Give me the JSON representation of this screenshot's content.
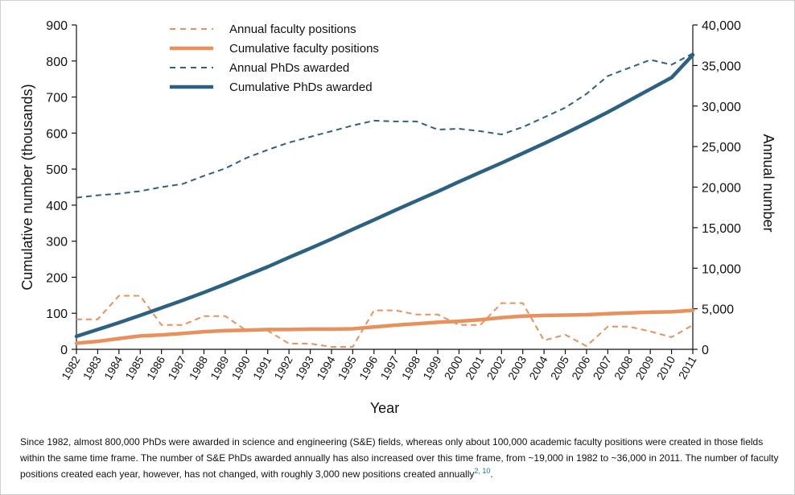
{
  "chart_data": {
    "type": "line",
    "x": [
      1982,
      1983,
      1984,
      1985,
      1986,
      1987,
      1988,
      1989,
      1990,
      1991,
      1992,
      1993,
      1994,
      1995,
      1996,
      1997,
      1998,
      1999,
      2000,
      2001,
      2002,
      2003,
      2004,
      2005,
      2006,
      2007,
      2008,
      2009,
      2010,
      2011
    ],
    "x_tick_labels": [
      "1982",
      "1983",
      "1984",
      "1985",
      "1986",
      "1987",
      "1988",
      "1989",
      "1990",
      "1991",
      "1992",
      "1993",
      "1994",
      "1995",
      "1996",
      "1997",
      "1998",
      "1999",
      "2000",
      "2001",
      "2002",
      "2003",
      "2004",
      "2005",
      "2006",
      "2007",
      "2008",
      "2009",
      "2010",
      "2011"
    ],
    "xlabel": "Year",
    "ylabel_left": "Cumulative number (thousands)",
    "ylabel_right": "Annual number",
    "ylim_left": [
      0,
      900
    ],
    "ylim_right": [
      0,
      40000
    ],
    "left_ticks": [
      "0",
      "100",
      "200",
      "300",
      "400",
      "500",
      "600",
      "700",
      "800",
      "900"
    ],
    "right_ticks": [
      "0",
      "5,000",
      "10,000",
      "15,000",
      "20,000",
      "25,000",
      "30,000",
      "35,000",
      "40,000"
    ],
    "legend_position": "top-center",
    "series": [
      {
        "name": "Annual faculty positions",
        "axis": "right",
        "style": "dashed",
        "color": "#e8915c",
        "values": [
          3700,
          3700,
          6600,
          6600,
          3000,
          3000,
          4100,
          4100,
          2300,
          2300,
          700,
          700,
          300,
          300,
          4800,
          4800,
          4300,
          4300,
          3000,
          3000,
          5700,
          5700,
          1100,
          1800,
          400,
          2800,
          2800,
          2200,
          1500,
          3000
        ]
      },
      {
        "name": "Cumulative faculty positions",
        "axis": "left",
        "style": "solid",
        "color": "#e8915c",
        "values": [
          17,
          22,
          30,
          37,
          40,
          44,
          49,
          52,
          53,
          55,
          55,
          56,
          56,
          57,
          62,
          67,
          71,
          75,
          78,
          82,
          88,
          92,
          94,
          95,
          96,
          99,
          101,
          103,
          104,
          108
        ]
      },
      {
        "name": "Annual PhDs awarded",
        "axis": "right",
        "style": "dashed",
        "color": "#2d6182",
        "values": [
          18700,
          19000,
          19200,
          19500,
          20000,
          20400,
          21400,
          22300,
          23600,
          24600,
          25500,
          26200,
          26900,
          27600,
          28200,
          28100,
          28100,
          27100,
          27200,
          26900,
          26500,
          27400,
          28600,
          29800,
          31500,
          33700,
          34700,
          35700,
          35100,
          36500
        ]
      },
      {
        "name": "Cumulative PhDs awarded",
        "axis": "left",
        "style": "solid",
        "color": "#2d6182",
        "values": [
          36,
          55,
          74,
          94,
          115,
          136,
          158,
          181,
          205,
          229,
          255,
          280,
          306,
          333,
          359,
          386,
          412,
          438,
          465,
          491,
          517,
          544,
          571,
          599,
          628,
          658,
          690,
          722,
          754,
          817
        ]
      }
    ]
  },
  "caption": {
    "text": "Since 1982, almost 800,000 PhDs were awarded in science and engineering (S&E) fields, whereas only about 100,000 academic faculty positions were created in those fields within the same time frame. The number of S&E PhDs awarded annually has also increased over this time frame, from ~19,000 in 1982 to ~36,000 in 2011. The number of faculty positions created each year, however, has not changed, with roughly 3,000 new positions created annually",
    "refs": "2, 10",
    "end": "."
  }
}
